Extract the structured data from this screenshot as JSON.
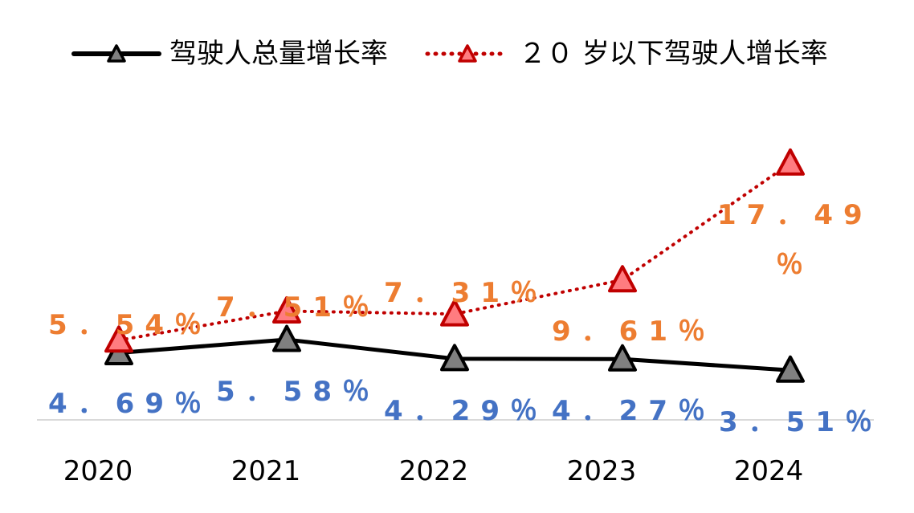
{
  "chart_data": {
    "type": "line",
    "title": "",
    "xlabel": "",
    "ylabel": "",
    "categories": [
      "2020",
      "2021",
      "2022",
      "2023",
      "2024"
    ],
    "ylim": [
      0,
      20
    ],
    "grid": false,
    "legend_position": "top",
    "series": [
      {
        "name": "驾驶人总量增长率",
        "values": [
          4.69,
          5.58,
          4.29,
          4.27,
          3.51
        ],
        "labels": [
          "4．69％",
          "5．58％",
          "4．29％",
          "4．27％",
          "3．51％"
        ],
        "color": "#000000",
        "marker_color": "#808080",
        "label_color": "#4472C4",
        "line_style": "solid"
      },
      {
        "name": "２０ 岁以下驾驶人增长率",
        "values": [
          5.54,
          7.51,
          7.31,
          9.61,
          17.49
        ],
        "labels": [
          "5．54％",
          "7．51％",
          "7．31％",
          "9．61％",
          "17．49％"
        ],
        "color": "#C00000",
        "marker_color": "#FF7C80",
        "label_color": "#ED7D31",
        "line_style": "dotted"
      }
    ]
  }
}
